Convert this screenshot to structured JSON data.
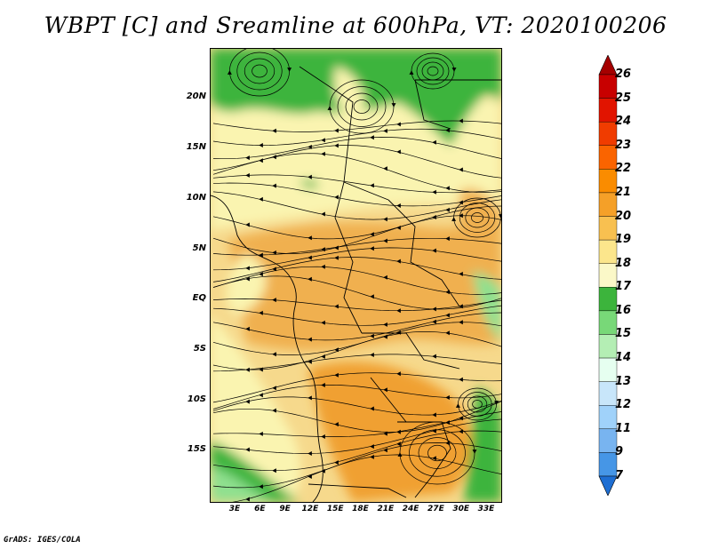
{
  "title": "WBPT [C] and Sreamline at 600hPa, VT: 2020100206",
  "credit": "GrADS: IGES/COLA",
  "map": {
    "y_ticks": [
      "20N",
      "15N",
      "10N",
      "5N",
      "EQ",
      "5S",
      "10S",
      "15S"
    ],
    "x_ticks": [
      "3E",
      "6E",
      "9E",
      "12E",
      "15E",
      "18E",
      "21E",
      "24E",
      "27E",
      "30E",
      "33E"
    ],
    "colors": {
      "c17_18": "#3cb43c",
      "c18_19": "#faf4b0",
      "c19_20": "#f6d98c",
      "c20_21": "#f0b050",
      "c21_22": "#f0a030",
      "c16_17": "#8fe08f"
    }
  },
  "colorbar": {
    "labels": [
      "26",
      "25",
      "24",
      "23",
      "22",
      "21",
      "20",
      "19",
      "18",
      "17",
      "16",
      "15",
      "14",
      "13",
      "12",
      "11",
      "9",
      "7"
    ],
    "colors": [
      "#a50000",
      "#c80000",
      "#e11400",
      "#f03c00",
      "#fa6400",
      "#fa8c00",
      "#f5a028",
      "#f8c050",
      "#fce68c",
      "#fbf8c8",
      "#3cb43c",
      "#78d878",
      "#b4eeb4",
      "#e6fff0",
      "#c8e6fa",
      "#a0d2fa",
      "#78b4f0",
      "#4696e6",
      "#1e6ed2"
    ]
  }
}
